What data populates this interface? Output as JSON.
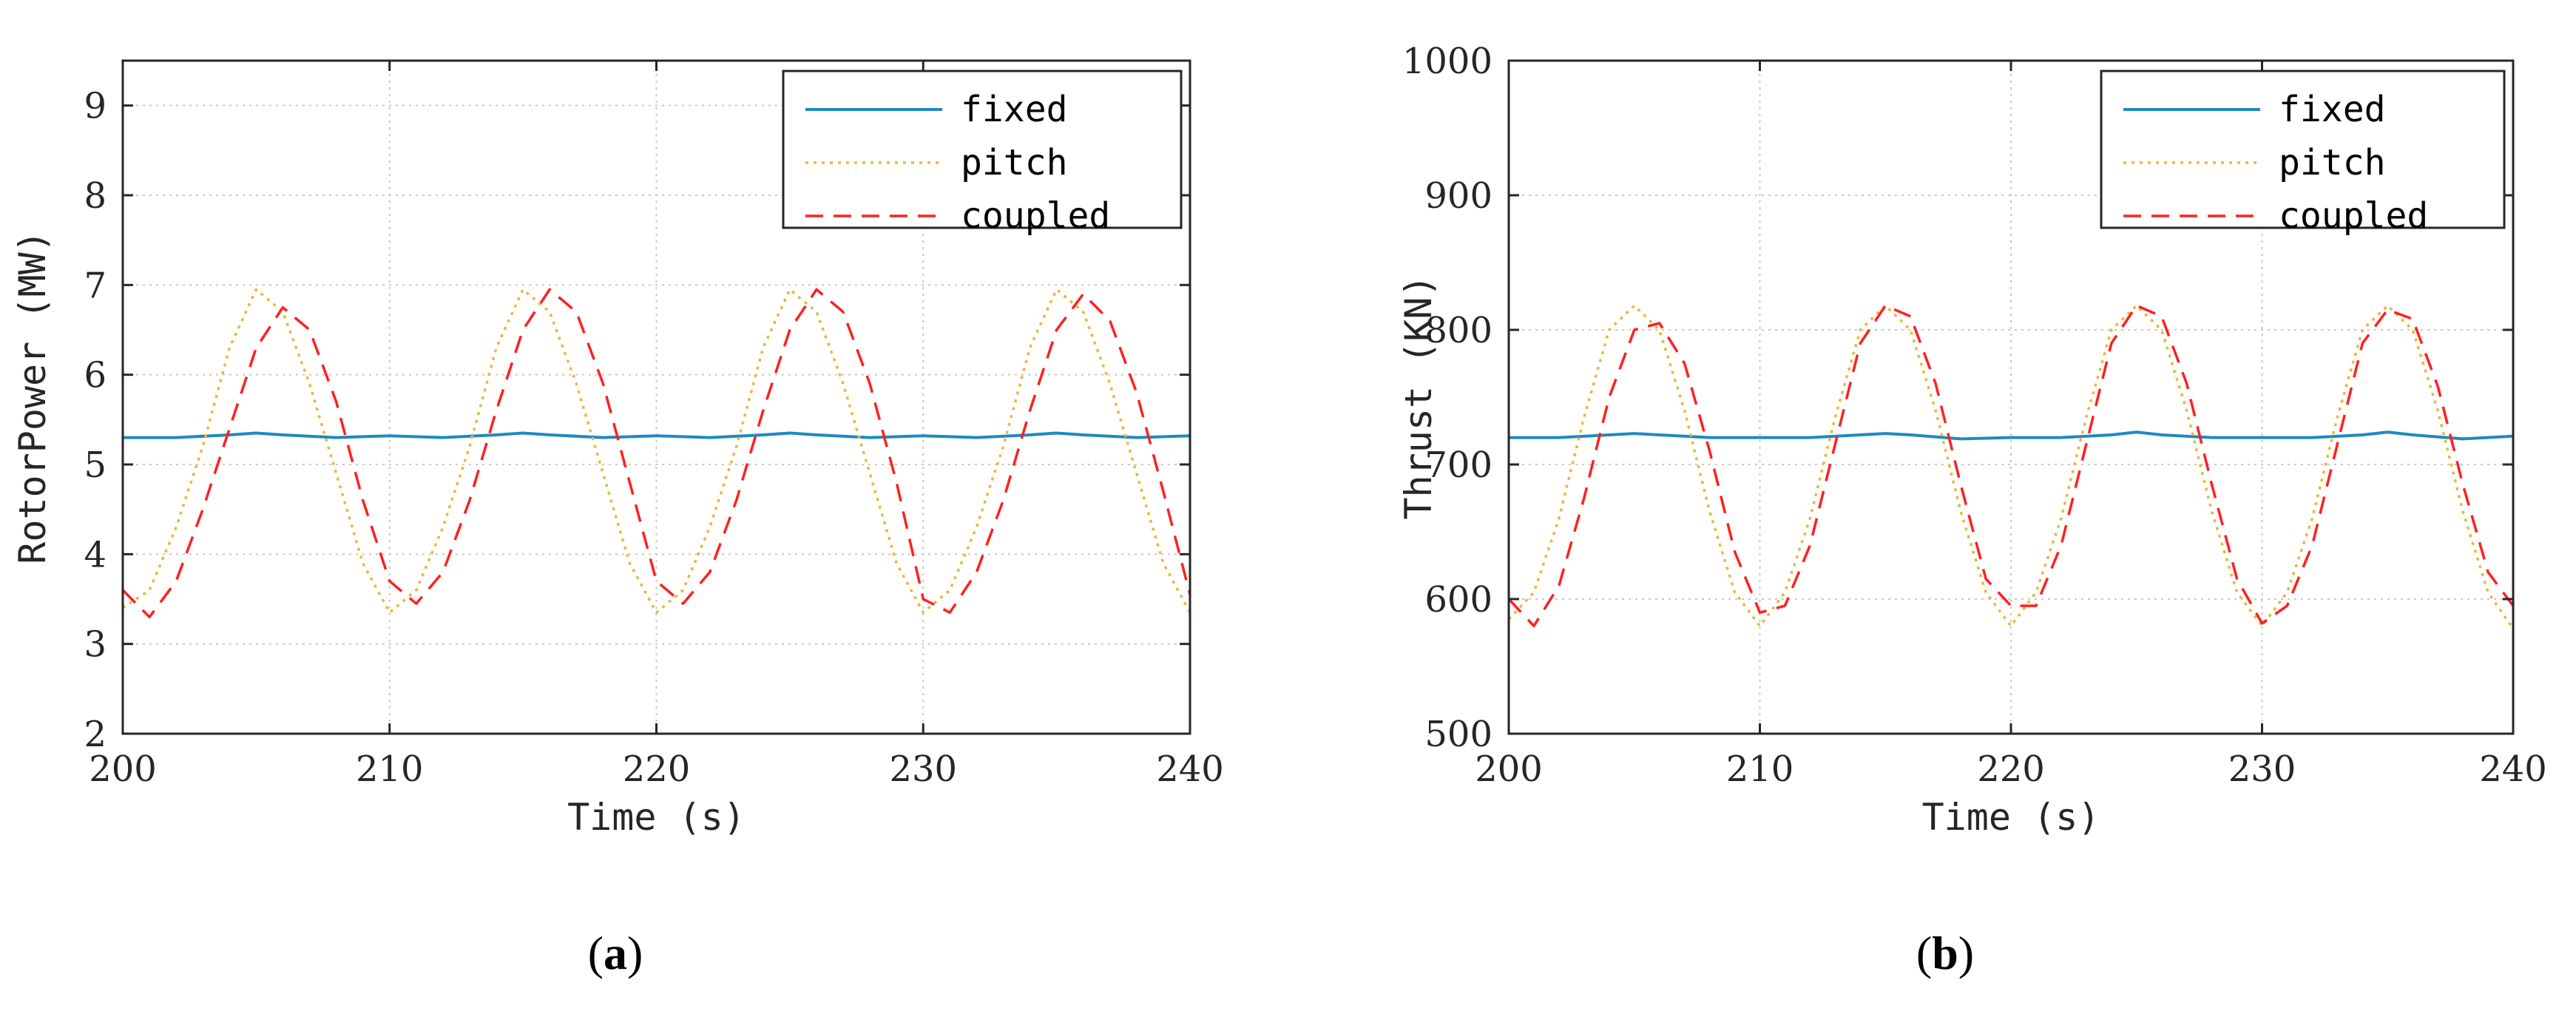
{
  "chart_data": [
    {
      "type": "line",
      "caption": "a",
      "xlabel": "Time (s)",
      "ylabel": "RotorPower (MW)",
      "xlim": [
        200,
        240
      ],
      "ylim": [
        2,
        9.5
      ],
      "xticks": [
        200,
        210,
        220,
        230,
        240
      ],
      "yticks": [
        2,
        3,
        4,
        5,
        6,
        7,
        8,
        9
      ],
      "xtick_labels": [
        "200",
        "210",
        "220",
        "230",
        "240"
      ],
      "ytick_labels": [
        "2",
        "3",
        "4",
        "5",
        "6",
        "7",
        "8",
        "9"
      ],
      "grid": true,
      "legend_position": "top-right",
      "series": [
        {
          "name": "fixed",
          "color": "#1f8ac0",
          "style": "solid",
          "x": [
            200,
            202,
            204,
            205,
            206,
            208,
            210,
            212,
            214,
            215,
            216,
            218,
            220,
            222,
            224,
            225,
            226,
            228,
            230,
            232,
            234,
            235,
            236,
            238,
            240
          ],
          "y": [
            5.3,
            5.3,
            5.33,
            5.35,
            5.33,
            5.3,
            5.32,
            5.3,
            5.33,
            5.35,
            5.33,
            5.3,
            5.32,
            5.3,
            5.33,
            5.35,
            5.33,
            5.3,
            5.32,
            5.3,
            5.33,
            5.35,
            5.33,
            5.3,
            5.32
          ]
        },
        {
          "name": "pitch",
          "color": "#e8b83a",
          "style": "dotted",
          "x": [
            200,
            201,
            202,
            203,
            204,
            205,
            206,
            207,
            208,
            209,
            210,
            211,
            212,
            213,
            214,
            215,
            216,
            217,
            218,
            219,
            220,
            221,
            222,
            223,
            224,
            225,
            226,
            227,
            228,
            229,
            230,
            231,
            232,
            233,
            234,
            235,
            236,
            237,
            238,
            239,
            240
          ],
          "y": [
            3.4,
            3.6,
            4.3,
            5.2,
            6.3,
            6.95,
            6.7,
            5.9,
            4.9,
            3.9,
            3.35,
            3.6,
            4.3,
            5.2,
            6.3,
            6.95,
            6.7,
            5.9,
            4.9,
            3.9,
            3.35,
            3.6,
            4.3,
            5.2,
            6.3,
            6.95,
            6.7,
            5.9,
            4.9,
            3.9,
            3.35,
            3.6,
            4.3,
            5.2,
            6.3,
            6.95,
            6.7,
            5.9,
            4.9,
            3.9,
            3.35
          ]
        },
        {
          "name": "coupled",
          "color": "#ff2020",
          "style": "dashed",
          "x": [
            200,
            201,
            202,
            203,
            204,
            205,
            206,
            207,
            208,
            209,
            210,
            211,
            212,
            213,
            214,
            215,
            216,
            217,
            218,
            219,
            220,
            221,
            222,
            223,
            224,
            225,
            226,
            227,
            228,
            229,
            230,
            231,
            232,
            233,
            234,
            235,
            236,
            237,
            238,
            239,
            240
          ],
          "y": [
            3.6,
            3.3,
            3.7,
            4.5,
            5.4,
            6.3,
            6.75,
            6.5,
            5.7,
            4.6,
            3.7,
            3.45,
            3.8,
            4.6,
            5.6,
            6.5,
            6.95,
            6.7,
            5.9,
            4.8,
            3.7,
            3.45,
            3.8,
            4.6,
            5.6,
            6.5,
            6.95,
            6.7,
            5.9,
            4.8,
            3.5,
            3.35,
            3.8,
            4.6,
            5.6,
            6.5,
            6.9,
            6.6,
            5.8,
            4.7,
            3.55
          ]
        }
      ]
    },
    {
      "type": "line",
      "caption": "b",
      "xlabel": "Time (s)",
      "ylabel": "Thrust (KN)",
      "xlim": [
        200,
        240
      ],
      "ylim": [
        500,
        1000
      ],
      "xticks": [
        200,
        210,
        220,
        230,
        240
      ],
      "yticks": [
        500,
        600,
        700,
        800,
        900,
        1000
      ],
      "xtick_labels": [
        "200",
        "210",
        "220",
        "230",
        "240"
      ],
      "ytick_labels": [
        "500",
        "600",
        "700",
        "800",
        "900",
        "1000"
      ],
      "grid": true,
      "legend_position": "top-right",
      "series": [
        {
          "name": "fixed",
          "color": "#1f8ac0",
          "style": "solid",
          "x": [
            200,
            202,
            204,
            205,
            206,
            208,
            210,
            212,
            214,
            215,
            216,
            218,
            220,
            222,
            224,
            225,
            226,
            228,
            230,
            232,
            234,
            235,
            236,
            238,
            240
          ],
          "y": [
            720,
            720,
            722,
            723,
            722,
            720,
            720,
            720,
            722,
            723,
            722,
            719,
            720,
            720,
            722,
            724,
            722,
            720,
            720,
            720,
            722,
            724,
            722,
            719,
            721
          ]
        },
        {
          "name": "pitch",
          "color": "#e8b83a",
          "style": "dotted",
          "x": [
            200,
            201,
            202,
            203,
            204,
            205,
            206,
            207,
            208,
            209,
            210,
            211,
            212,
            213,
            214,
            215,
            216,
            217,
            218,
            219,
            220,
            221,
            222,
            223,
            224,
            225,
            226,
            227,
            228,
            229,
            230,
            231,
            232,
            233,
            234,
            235,
            236,
            237,
            238,
            239,
            240
          ],
          "y": [
            585,
            605,
            660,
            735,
            800,
            818,
            800,
            740,
            665,
            605,
            580,
            605,
            660,
            735,
            800,
            818,
            800,
            740,
            665,
            605,
            580,
            605,
            660,
            735,
            800,
            818,
            800,
            740,
            665,
            605,
            580,
            605,
            660,
            735,
            800,
            818,
            800,
            740,
            665,
            605,
            578
          ]
        },
        {
          "name": "coupled",
          "color": "#ff2020",
          "style": "dashed",
          "x": [
            200,
            201,
            202,
            203,
            204,
            205,
            206,
            207,
            208,
            209,
            210,
            211,
            212,
            213,
            214,
            215,
            216,
            217,
            218,
            219,
            220,
            221,
            222,
            223,
            224,
            225,
            226,
            227,
            228,
            229,
            230,
            231,
            232,
            233,
            234,
            235,
            236,
            237,
            238,
            239,
            240
          ],
          "y": [
            600,
            580,
            610,
            675,
            750,
            800,
            805,
            775,
            710,
            635,
            590,
            595,
            640,
            715,
            790,
            818,
            810,
            760,
            685,
            615,
            595,
            595,
            640,
            715,
            790,
            818,
            810,
            760,
            685,
            615,
            582,
            595,
            640,
            715,
            790,
            815,
            808,
            758,
            685,
            620,
            595
          ]
        }
      ]
    }
  ]
}
